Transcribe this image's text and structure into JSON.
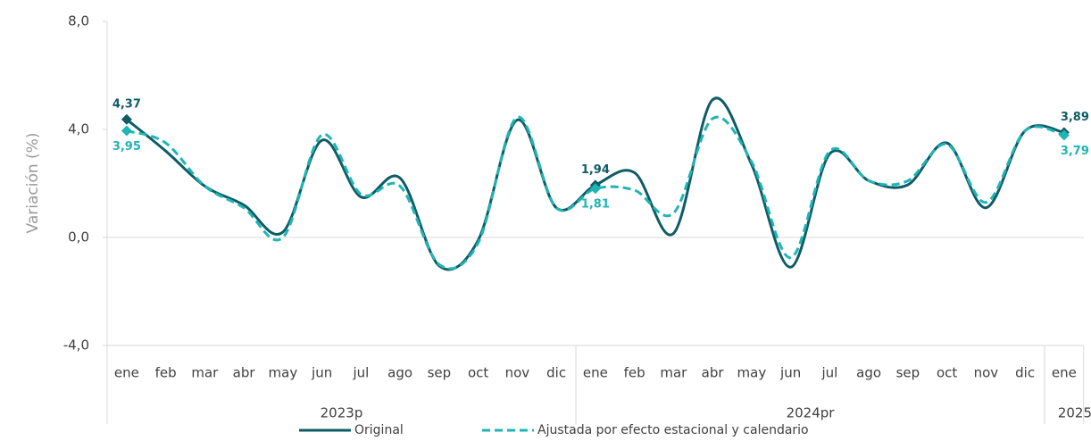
{
  "chart_data": {
    "type": "line",
    "y_label": "Variación (%)",
    "groups": [
      {
        "label": "2023p",
        "categories": [
          "ene",
          "feb",
          "mar",
          "abr",
          "may",
          "jun",
          "jul",
          "ago",
          "sep",
          "oct",
          "nov",
          "dic"
        ]
      },
      {
        "label": "2024pr",
        "categories": [
          "ene",
          "feb",
          "mar",
          "abr",
          "may",
          "jun",
          "jul",
          "ago",
          "sep",
          "oct",
          "nov",
          "dic"
        ]
      },
      {
        "label": "2025pr",
        "categories": [
          "ene"
        ]
      }
    ],
    "series": [
      {
        "name": "Original",
        "color": "#0e5c66",
        "dash": false,
        "values": [
          4.37,
          3.2,
          1.9,
          1.2,
          0.2,
          3.6,
          1.5,
          2.2,
          -1.05,
          -0.1,
          4.35,
          1.1,
          1.94,
          2.4,
          0.15,
          5.1,
          2.7,
          -1.1,
          3.1,
          2.1,
          1.95,
          3.5,
          1.1,
          3.95,
          3.89
        ],
        "value_labels": [
          "4,37",
          null,
          null,
          null,
          null,
          null,
          null,
          null,
          null,
          null,
          null,
          null,
          "1,94",
          null,
          null,
          null,
          null,
          null,
          null,
          null,
          null,
          null,
          null,
          null,
          "3,89"
        ]
      },
      {
        "name": "Ajustada por efecto estacional y calendario",
        "color": "#1fb5b5",
        "dash": true,
        "values": [
          3.95,
          3.5,
          1.9,
          1.1,
          0.0,
          3.8,
          1.6,
          1.9,
          -1.0,
          -0.2,
          4.45,
          1.1,
          1.81,
          1.75,
          0.9,
          4.4,
          2.8,
          -0.75,
          3.2,
          2.1,
          2.1,
          3.45,
          1.3,
          3.95,
          3.79
        ],
        "value_labels": [
          "3,95",
          null,
          null,
          null,
          null,
          null,
          null,
          null,
          null,
          null,
          null,
          null,
          "1,81",
          null,
          null,
          null,
          null,
          null,
          null,
          null,
          null,
          null,
          null,
          null,
          "3,79"
        ]
      }
    ],
    "ylim": [
      -4,
      8
    ],
    "yticks": [
      {
        "value": -4,
        "label": "-4,0"
      },
      {
        "value": 0,
        "label": "0,0"
      },
      {
        "value": 4,
        "label": "4,0"
      },
      {
        "value": 8,
        "label": "8,0"
      }
    ],
    "grid_at": [
      0
    ]
  }
}
